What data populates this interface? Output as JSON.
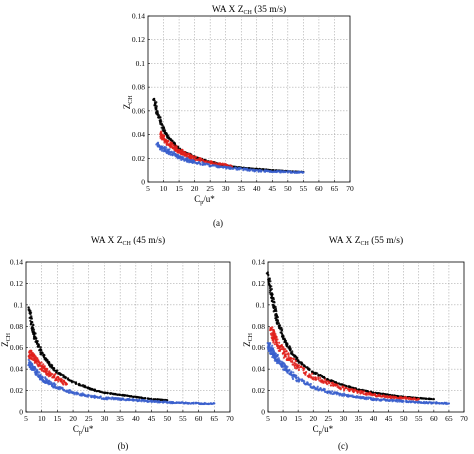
{
  "chart_data": [
    {
      "type": "scatter",
      "title": {
        "main": "WA X Z",
        "sub": "CH",
        "suffix": " (35 m/s)"
      },
      "ylabel": {
        "main": "Z",
        "sub": "CH"
      },
      "xlabel": {
        "main": "C",
        "sub": "p",
        "suffix": "/u*"
      },
      "caption": "(a)",
      "xlim": [
        5,
        70
      ],
      "ylim": [
        0,
        0.14
      ],
      "xticks": [
        5,
        10,
        15,
        20,
        25,
        30,
        35,
        40,
        45,
        50,
        55,
        60,
        65,
        70
      ],
      "yticks": [
        0,
        0.02,
        0.04,
        0.06,
        0.08,
        0.1,
        0.12,
        0.14
      ],
      "ytick_labels": [
        "0",
        "0.02",
        "0.04",
        "0.06",
        "0.08",
        "0.1",
        "0.12",
        "0.14"
      ],
      "grid": true,
      "series": [
        {
          "color": "#000000",
          "points": [
            [
              7,
              0.07
            ],
            [
              8,
              0.058
            ],
            [
              10,
              0.045
            ],
            [
              12,
              0.036
            ],
            [
              15,
              0.028
            ],
            [
              20,
              0.021
            ],
            [
              25,
              0.017
            ],
            [
              30,
              0.014
            ],
            [
              35,
              0.012
            ],
            [
              40,
              0.011
            ],
            [
              45,
              0.01
            ],
            [
              50,
              0.009
            ],
            [
              55,
              0.0085
            ]
          ]
        },
        {
          "color": "#e0201b",
          "points": [
            [
              9,
              0.04
            ],
            [
              10,
              0.037
            ],
            [
              12,
              0.032
            ],
            [
              14,
              0.028
            ],
            [
              16,
              0.025
            ],
            [
              18,
              0.022
            ],
            [
              20,
              0.02
            ],
            [
              24,
              0.017
            ],
            [
              28,
              0.015
            ],
            [
              32,
              0.013
            ]
          ]
        },
        {
          "color": "#3a5fcd",
          "points": [
            [
              8,
              0.032
            ],
            [
              10,
              0.028
            ],
            [
              12,
              0.025
            ],
            [
              15,
              0.021
            ],
            [
              18,
              0.018
            ],
            [
              20,
              0.017
            ],
            [
              25,
              0.014
            ],
            [
              30,
              0.012
            ],
            [
              35,
              0.011
            ],
            [
              40,
              0.0095
            ],
            [
              45,
              0.009
            ],
            [
              50,
              0.0085
            ],
            [
              55,
              0.008
            ]
          ]
        }
      ]
    },
    {
      "type": "scatter",
      "title": {
        "main": "WA X Z",
        "sub": "CH",
        "suffix": " (45 m/s)"
      },
      "ylabel": {
        "main": "Z",
        "sub": "CH"
      },
      "xlabel": {
        "main": "C",
        "sub": "p",
        "suffix": "/u*"
      },
      "caption": "(b)",
      "xlim": [
        5,
        70
      ],
      "ylim": [
        0,
        0.14
      ],
      "xticks": [
        5,
        10,
        15,
        20,
        25,
        30,
        35,
        40,
        45,
        50,
        55,
        60,
        65,
        70
      ],
      "yticks": [
        0,
        0.02,
        0.04,
        0.06,
        0.08,
        0.1,
        0.12,
        0.14
      ],
      "ytick_labels": [
        "0",
        "0.02",
        "0.04",
        "0.06",
        "0.08",
        "0.1",
        "0.12",
        "0.14"
      ],
      "grid": true,
      "series": [
        {
          "color": "#000000",
          "points": [
            [
              6,
              0.097
            ],
            [
              7,
              0.08
            ],
            [
              8,
              0.068
            ],
            [
              10,
              0.055
            ],
            [
              12,
              0.046
            ],
            [
              15,
              0.037
            ],
            [
              20,
              0.028
            ],
            [
              25,
              0.022
            ],
            [
              30,
              0.018
            ],
            [
              35,
              0.016
            ],
            [
              40,
              0.014
            ],
            [
              45,
              0.012
            ],
            [
              50,
              0.011
            ]
          ]
        },
        {
          "color": "#e0201b",
          "points": [
            [
              6,
              0.055
            ],
            [
              7,
              0.052
            ],
            [
              8,
              0.048
            ],
            [
              10,
              0.042
            ],
            [
              12,
              0.037
            ],
            [
              15,
              0.031
            ],
            [
              18,
              0.026
            ]
          ]
        },
        {
          "color": "#3a5fcd",
          "points": [
            [
              6,
              0.046
            ],
            [
              7,
              0.042
            ],
            [
              8,
              0.038
            ],
            [
              10,
              0.032
            ],
            [
              12,
              0.028
            ],
            [
              15,
              0.023
            ],
            [
              20,
              0.018
            ],
            [
              25,
              0.015
            ],
            [
              30,
              0.013
            ],
            [
              35,
              0.012
            ],
            [
              40,
              0.011
            ],
            [
              45,
              0.01
            ],
            [
              50,
              0.009
            ],
            [
              55,
              0.0085
            ],
            [
              60,
              0.008
            ],
            [
              65,
              0.008
            ]
          ]
        }
      ]
    },
    {
      "type": "scatter",
      "title": {
        "main": "WA X Z",
        "sub": "CH",
        "suffix": " (55 m/s)"
      },
      "ylabel": {
        "main": "Z",
        "sub": "CH"
      },
      "xlabel": {
        "main": "C",
        "sub": "p",
        "suffix": "/u*"
      },
      "caption": "(c)",
      "xlim": [
        5,
        70
      ],
      "ylim": [
        0,
        0.14
      ],
      "xticks": [
        5,
        10,
        15,
        20,
        25,
        30,
        35,
        40,
        45,
        50,
        55,
        60,
        65,
        70
      ],
      "yticks": [
        0,
        0.02,
        0.04,
        0.06,
        0.08,
        0.1,
        0.12,
        0.14
      ],
      "ytick_labels": [
        "0",
        "0.02",
        "0.04",
        "0.06",
        "0.08",
        "0.1",
        "0.12",
        "0.14"
      ],
      "grid": true,
      "series": [
        {
          "color": "#000000",
          "points": [
            [
              5,
              0.128
            ],
            [
              6,
              0.112
            ],
            [
              7,
              0.098
            ],
            [
              8,
              0.086
            ],
            [
              10,
              0.07
            ],
            [
              12,
              0.059
            ],
            [
              15,
              0.048
            ],
            [
              20,
              0.037
            ],
            [
              25,
              0.03
            ],
            [
              30,
              0.025
            ],
            [
              35,
              0.021
            ],
            [
              40,
              0.018
            ],
            [
              45,
              0.016
            ],
            [
              50,
              0.014
            ],
            [
              55,
              0.013
            ],
            [
              60,
              0.012
            ]
          ]
        },
        {
          "color": "#e0201b",
          "points": [
            [
              6,
              0.075
            ],
            [
              7,
              0.07
            ],
            [
              8,
              0.065
            ],
            [
              10,
              0.057
            ],
            [
              12,
              0.05
            ],
            [
              15,
              0.042
            ],
            [
              20,
              0.033
            ],
            [
              25,
              0.027
            ],
            [
              30,
              0.022
            ],
            [
              35,
              0.019
            ],
            [
              40,
              0.016
            ],
            [
              45,
              0.014
            ],
            [
              50,
              0.013
            ],
            [
              55,
              0.012
            ]
          ]
        },
        {
          "color": "#3a5fcd",
          "points": [
            [
              5,
              0.062
            ],
            [
              6,
              0.058
            ],
            [
              7,
              0.054
            ],
            [
              8,
              0.05
            ],
            [
              10,
              0.043
            ],
            [
              12,
              0.037
            ],
            [
              15,
              0.03
            ],
            [
              20,
              0.023
            ],
            [
              25,
              0.019
            ],
            [
              30,
              0.016
            ],
            [
              35,
              0.014
            ],
            [
              40,
              0.012
            ],
            [
              45,
              0.011
            ],
            [
              50,
              0.01
            ],
            [
              55,
              0.009
            ],
            [
              60,
              0.0085
            ],
            [
              65,
              0.008
            ]
          ]
        }
      ]
    }
  ]
}
